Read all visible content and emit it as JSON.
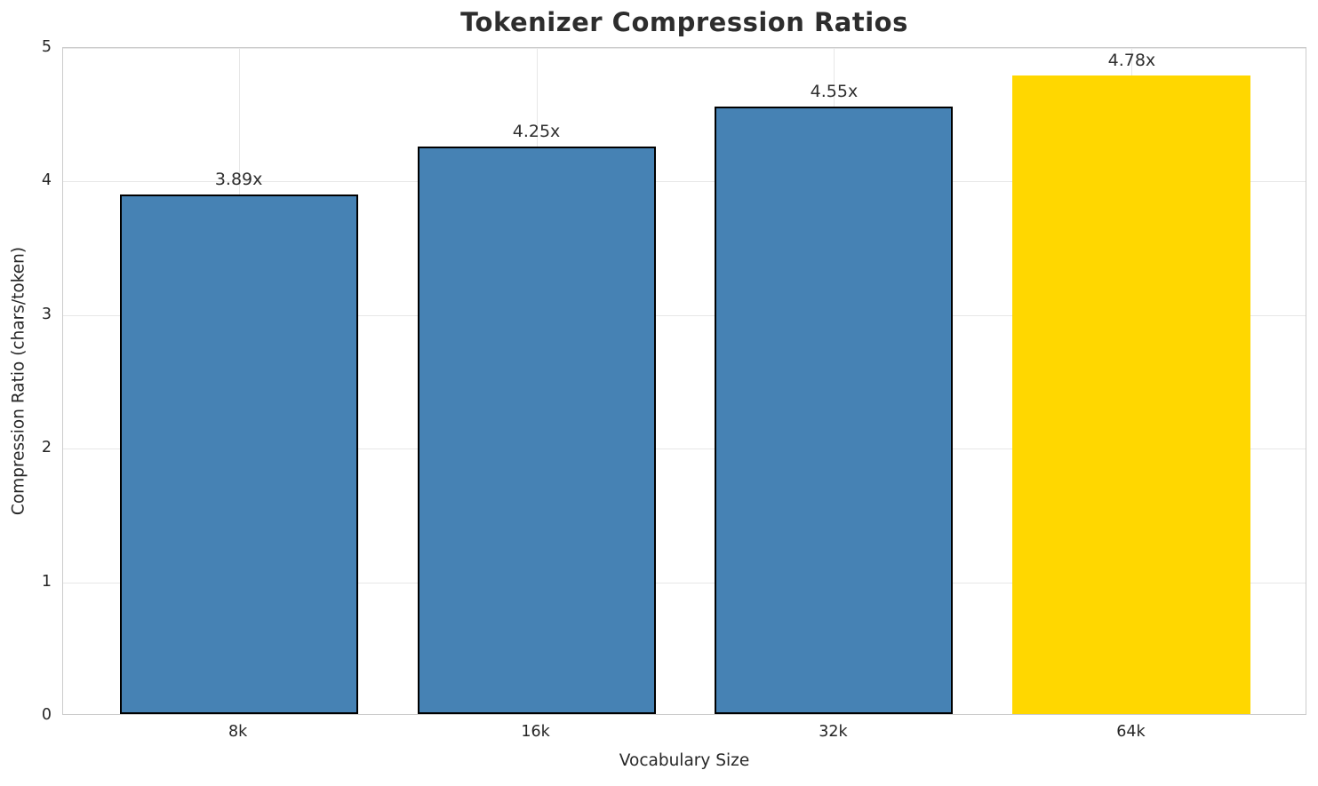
{
  "chart_data": {
    "type": "bar",
    "title": "Tokenizer Compression Ratios",
    "xlabel": "Vocabulary Size",
    "ylabel": "Compression Ratio (chars/token)",
    "categories": [
      "8k",
      "16k",
      "32k",
      "64k"
    ],
    "values": [
      3.89,
      4.25,
      4.55,
      4.78
    ],
    "bar_labels": [
      "3.89x",
      "4.25x",
      "4.55x",
      "4.78x"
    ],
    "bar_colors": [
      "#4682B4",
      "#4682B4",
      "#4682B4",
      "#FFD700"
    ],
    "bar_edge_colors": [
      "#000000",
      "#000000",
      "#000000",
      "#FFD700"
    ],
    "highlight_index": 3,
    "ylim": [
      0,
      5
    ],
    "yticks": [
      0,
      1,
      2,
      3,
      4,
      5
    ],
    "grid": true,
    "legend_position": "none",
    "accent_colors": {
      "steel_blue": "#4682B4",
      "gold": "#FFD700",
      "grid": "#e7e7e7",
      "spine": "#cccccc",
      "text": "#262626",
      "title_text": "#2d2d2d"
    }
  }
}
